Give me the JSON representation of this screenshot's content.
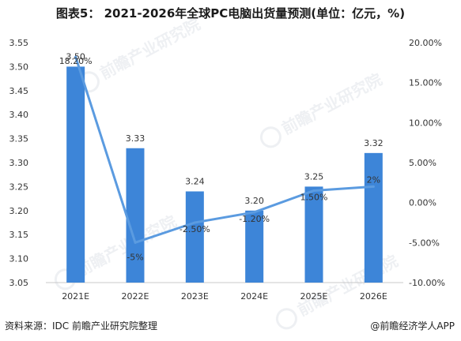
{
  "title": "图表5： 2021-2026年全球PC电脑出货量预测(单位：亿元，%)",
  "source_text": "资料来源：IDC 前瞻产业研究院整理",
  "credit_text": "@前瞻经济学人APP",
  "watermark_text": "前瞻产业研究院",
  "colors": {
    "bar": "#3d85d8",
    "line": "#5b9be0",
    "text": "#333333",
    "axis": "#c8c8c8"
  },
  "chart_data": {
    "type": "bar",
    "categories": [
      "2021E",
      "2022E",
      "2023E",
      "2024E",
      "2025E",
      "2026E"
    ],
    "series": [
      {
        "type": "bar",
        "values": [
          3.5,
          3.33,
          3.24,
          3.2,
          3.25,
          3.32
        ],
        "labels": [
          "3.50",
          "3.33",
          "3.24",
          "3.20",
          "3.25",
          "3.32"
        ]
      },
      {
        "type": "line",
        "axis": "right",
        "values": [
          18.2,
          -5,
          -2.5,
          -1.2,
          1.5,
          2
        ],
        "labels": [
          "18.20%",
          "-5%",
          "-2.50%",
          "-1.20%",
          "1.50%",
          "2%"
        ]
      }
    ],
    "y_left": {
      "min": 3.05,
      "max": 3.55,
      "ticks": [
        "3.55",
        "3.50",
        "3.45",
        "3.40",
        "3.35",
        "3.30",
        "3.25",
        "3.20",
        "3.15",
        "3.10",
        "3.05"
      ]
    },
    "y_right": {
      "min": -10,
      "max": 20,
      "ticks": [
        "20.00%",
        "15.00%",
        "10.00%",
        "5.00%",
        "0.00%",
        "-5.00%",
        "-10.00%"
      ]
    },
    "legend": "none",
    "grid": false
  }
}
